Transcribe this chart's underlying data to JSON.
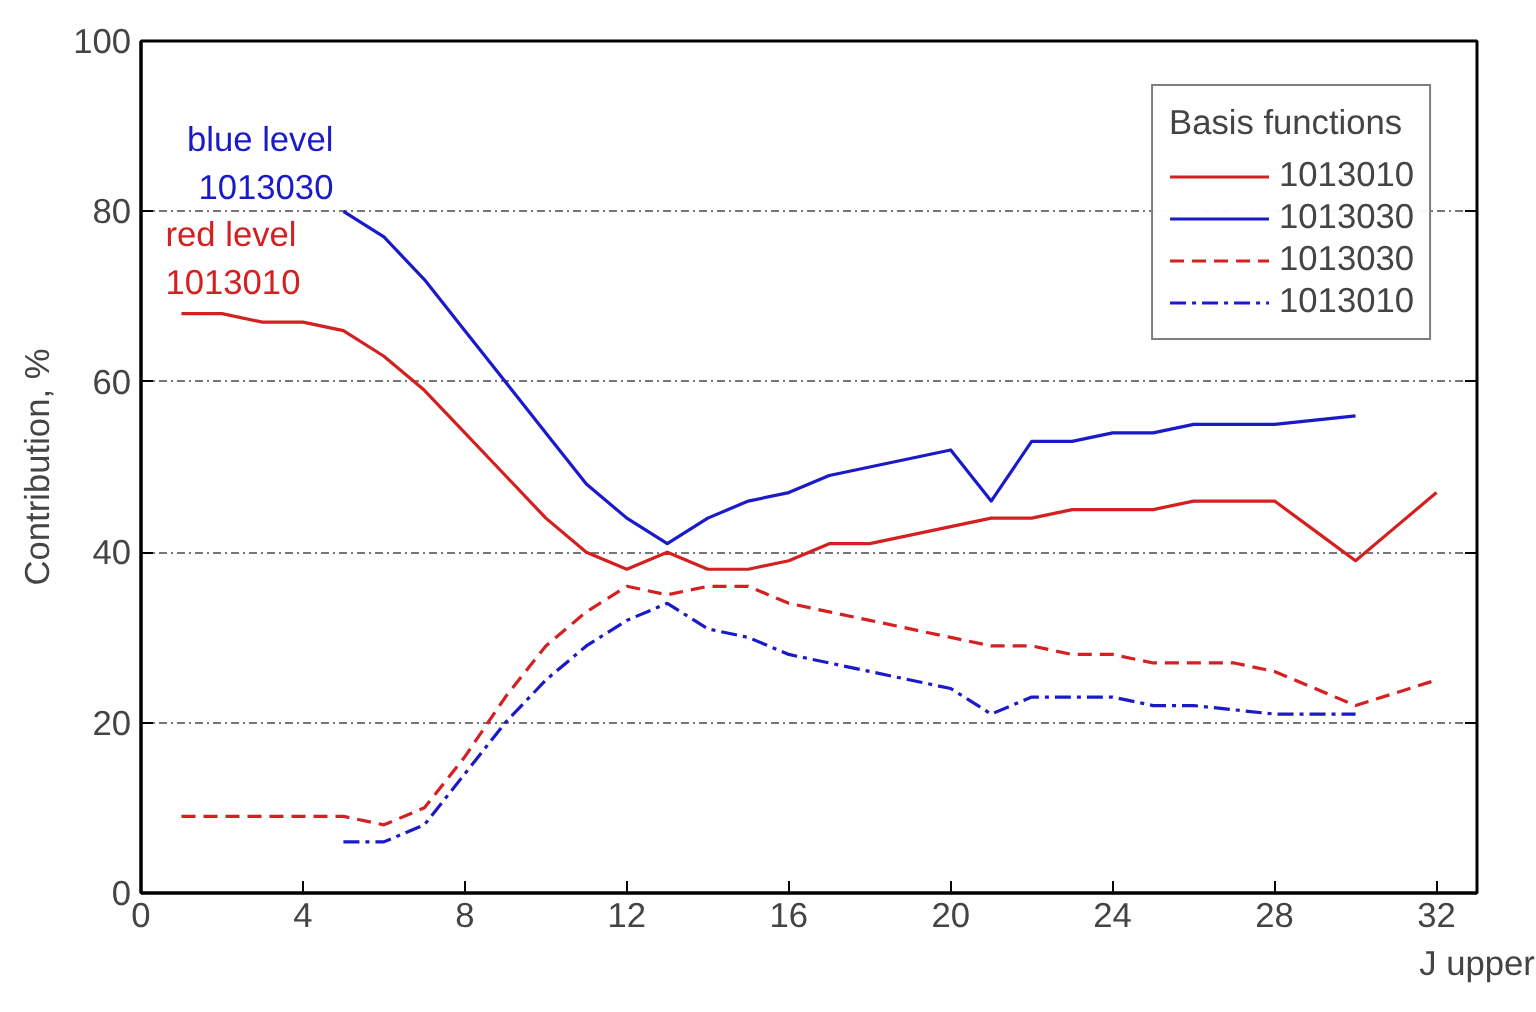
{
  "chart_data": {
    "type": "line",
    "xlabel": "J upper",
    "ylabel": "Contribution, %",
    "legend_title": "Basis functions",
    "legend": "top right",
    "grid": "y",
    "xlim": [
      0,
      33
    ],
    "ylim": [
      0,
      100
    ],
    "xticks": [
      0,
      4,
      8,
      12,
      16,
      20,
      24,
      28,
      32
    ],
    "yticks": [
      0,
      20,
      40,
      60,
      80,
      100
    ],
    "series": [
      {
        "name": "1013010",
        "color": "#d42020",
        "line_style": "solid",
        "x": [
          1,
          2,
          3,
          4,
          5,
          6,
          7,
          8,
          9,
          10,
          11,
          12,
          13,
          14,
          15,
          16,
          17,
          18,
          19,
          20,
          21,
          22,
          23,
          24,
          25,
          26,
          27,
          28,
          29,
          30,
          31,
          32
        ],
        "values": [
          68,
          68,
          67,
          67,
          66,
          63,
          59,
          54,
          49,
          44,
          40,
          38,
          40,
          38,
          38,
          39,
          41,
          41,
          42,
          43,
          44,
          44,
          45,
          45,
          45,
          46,
          46,
          46,
          42.5,
          39,
          43,
          47
        ]
      },
      {
        "name": "1013030",
        "color": "#1a1ac8",
        "line_style": "solid",
        "x": [
          5,
          6,
          7,
          8,
          9,
          10,
          11,
          12,
          13,
          14,
          15,
          16,
          17,
          18,
          19,
          20,
          21,
          22,
          23,
          24,
          25,
          26,
          27,
          28,
          29,
          30
        ],
        "values": [
          80,
          77,
          72,
          66,
          60,
          54,
          48,
          44,
          41,
          44,
          46,
          47,
          49,
          50,
          51,
          52,
          46,
          53,
          53,
          54,
          54,
          55,
          55,
          55,
          55.5,
          56
        ]
      },
      {
        "name": "1013030",
        "color": "#d42020",
        "line_style": "dashed",
        "x": [
          1,
          2,
          3,
          4,
          5,
          6,
          7,
          8,
          9,
          10,
          11,
          12,
          13,
          14,
          15,
          16,
          17,
          18,
          19,
          20,
          21,
          22,
          23,
          24,
          25,
          26,
          27,
          28,
          29,
          30,
          31,
          32
        ],
        "values": [
          9,
          9,
          9,
          9,
          9,
          8,
          10,
          16,
          23,
          29,
          33,
          36,
          35,
          36,
          36,
          34,
          33,
          32,
          31,
          30,
          29,
          29,
          28,
          28,
          27,
          27,
          27,
          26,
          24,
          22,
          23.5,
          25
        ]
      },
      {
        "name": "1013010",
        "color": "#1a1ac8",
        "line_style": "dashdot",
        "x": [
          5,
          6,
          7,
          8,
          9,
          10,
          11,
          12,
          13,
          14,
          15,
          16,
          17,
          18,
          19,
          20,
          21,
          22,
          23,
          24,
          25,
          26,
          27,
          28,
          29,
          30
        ],
        "values": [
          6,
          6,
          8,
          14,
          20,
          25,
          29,
          32,
          34,
          31,
          30,
          28,
          27,
          26,
          25,
          24,
          21,
          23,
          23,
          23,
          22,
          22,
          21.5,
          21,
          21,
          21
        ]
      }
    ],
    "annotations": [
      {
        "text": "blue level\n1013030",
        "x": 5,
        "y": 80
      },
      {
        "text": "red level\n1013010",
        "x": 1,
        "y": 68
      }
    ]
  }
}
